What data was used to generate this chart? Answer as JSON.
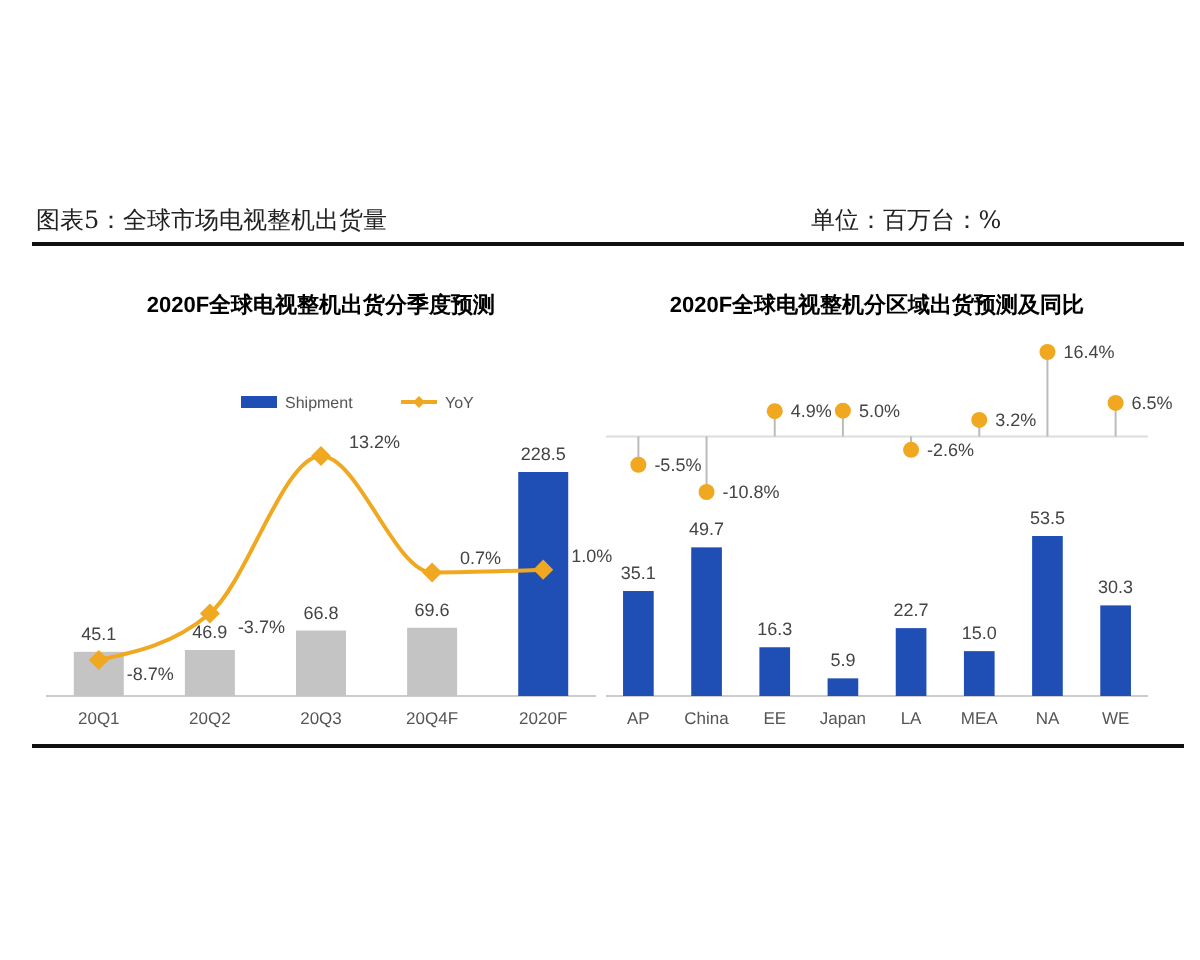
{
  "chart_data": [
    {
      "type": "bar",
      "title": "2020F全球电视整机出货分季度预测",
      "annotations": [
        "图表5：全球市场电视整机出货量"
      ],
      "categories": [
        "20Q1",
        "20Q2",
        "20Q3",
        "20Q4F",
        "2020F"
      ],
      "legend": "top",
      "series": [
        {
          "name": "Shipment",
          "type": "bar",
          "color": "#1f4fb4",
          "colors": [
            "#c4c4c4",
            "#c4c4c4",
            "#c4c4c4",
            "#c4c4c4",
            "#1f4fb4"
          ],
          "values": [
            45.1,
            46.9,
            66.8,
            69.6,
            228.5
          ],
          "value_labels": [
            "45.1",
            "46.9",
            "66.8",
            "69.6",
            "228.5"
          ]
        },
        {
          "name": "YoY",
          "type": "line",
          "axis": "y2",
          "color": "#f0a820",
          "marker": "diamond",
          "values": [
            -8.7,
            -3.7,
            13.2,
            0.7,
            1.0
          ],
          "value_labels": [
            "-8.7%",
            "-3.7%",
            "13.2%",
            "0.7%",
            "1.0%"
          ]
        }
      ]
    },
    {
      "type": "lollipop",
      "title": "2020F全球电视整机分区域出货预测及同比",
      "annotations": [
        "单位：百万台：%"
      ],
      "categories": [
        "AP",
        "China",
        "EE",
        "Japan",
        "LA",
        "MEA",
        "NA",
        "WE"
      ],
      "ref_lines": [
        {
          "axis": "y",
          "value": 0,
          "color": "#dddddd"
        }
      ],
      "series": [
        {
          "color": "#f0a820",
          "values": [
            -5.5,
            -10.8,
            4.9,
            5.0,
            -2.6,
            3.2,
            16.4,
            6.5
          ],
          "value_labels": [
            "-5.5%",
            "-10.8%",
            "4.9%",
            "5.0%",
            "-2.6%",
            "3.2%",
            "16.4%",
            "6.5%"
          ]
        }
      ]
    },
    {
      "type": "bar",
      "categories": [
        null,
        null,
        null,
        null,
        null,
        null,
        null,
        null
      ],
      "series": [
        {
          "type": "bar",
          "color": "#1f4fb4",
          "values": [
            35.1,
            49.7,
            16.3,
            5.9,
            22.7,
            15.0,
            53.5,
            30.3
          ],
          "value_labels": [
            "35.1",
            "49.7",
            "16.3",
            "5.9",
            "22.7",
            "15.0",
            "53.5",
            "30.3"
          ]
        }
      ]
    }
  ]
}
